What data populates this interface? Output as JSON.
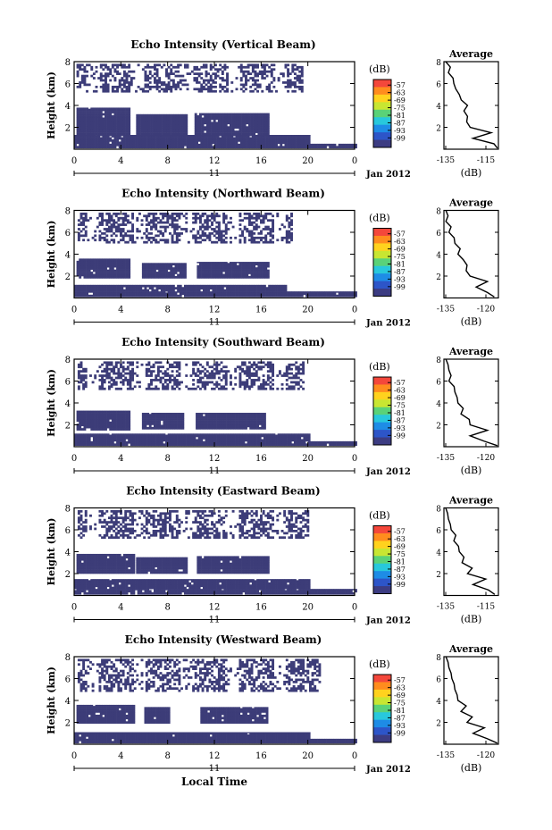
{
  "figure": {
    "date_label": "Jan 2012",
    "day_label": "11",
    "xlabel": "Local Time",
    "colorbar_units": "(dB)",
    "colorbar_ticks": [
      "-57",
      "-63",
      "-69",
      "-75",
      "-81",
      "-87",
      "-93",
      "-99"
    ],
    "colorbar_colors": [
      "#f4473b",
      "#ff8c1e",
      "#ffd21e",
      "#c8e632",
      "#5ad278",
      "#28c8dc",
      "#1e8ce6",
      "#2d55c8",
      "#3c3c82"
    ],
    "echo_color": "#3c3c78",
    "avg_title": "Average",
    "avg_xlabel": "(dB)"
  },
  "chart_data": [
    {
      "type": "heatmap",
      "title": "Echo Intensity (Vertical Beam)",
      "ylabel": "Height (km)",
      "xlim": [
        0,
        24
      ],
      "ylim": [
        0,
        8
      ],
      "xticks": [
        "0",
        "4",
        "8",
        "12",
        "16",
        "20",
        "0"
      ],
      "yticks": [
        "2",
        "4",
        "6",
        "8"
      ],
      "echo_bands": [
        {
          "x": [
            0,
            24
          ],
          "y": [
            0.1,
            0.5
          ]
        },
        {
          "x": [
            0,
            20
          ],
          "y": [
            0.5,
            1.3
          ]
        },
        {
          "x": [
            0.2,
            4.8
          ],
          "y": [
            1.3,
            3.8
          ]
        },
        {
          "x": [
            5.3,
            9.5
          ],
          "y": [
            1.3,
            3.2
          ]
        },
        {
          "x": [
            10.3,
            16.5
          ],
          "y": [
            1.3,
            3.3
          ]
        },
        {
          "x": [
            0.2,
            19.5
          ],
          "y": [
            5.2,
            7.8
          ]
        }
      ],
      "average_profile": {
        "xlim": [
          -135,
          -115
        ],
        "xticks": [
          "-135",
          "-115"
        ],
        "yticks": [
          "2",
          "4",
          "6",
          "8"
        ],
        "height_km": [
          0.1,
          0.5,
          1.0,
          1.5,
          2.0,
          2.5,
          3.0,
          3.5,
          4.0,
          4.5,
          5.0,
          5.5,
          6.0,
          6.5,
          7.0,
          7.5,
          8.0
        ],
        "db": [
          -115,
          -117,
          -124,
          -118,
          -125,
          -127,
          -126,
          -128,
          -126,
          -129,
          -129,
          -131,
          -131,
          -132,
          -133,
          -133,
          -134
        ]
      }
    },
    {
      "type": "heatmap",
      "title": "Echo Intensity (Northward Beam)",
      "ylabel": "Height (km)",
      "xlim": [
        0,
        24
      ],
      "ylim": [
        0,
        8
      ],
      "xticks": [
        "0",
        "4",
        "8",
        "12",
        "16",
        "20",
        "0"
      ],
      "yticks": [
        "2",
        "4",
        "6",
        "8"
      ],
      "echo_bands": [
        {
          "x": [
            0,
            24
          ],
          "y": [
            0.1,
            0.6
          ]
        },
        {
          "x": [
            0,
            18
          ],
          "y": [
            0.6,
            1.2
          ]
        },
        {
          "x": [
            0.2,
            4.8
          ],
          "y": [
            1.8,
            3.6
          ]
        },
        {
          "x": [
            5.8,
            9.5
          ],
          "y": [
            1.8,
            3.2
          ]
        },
        {
          "x": [
            10.5,
            16.5
          ],
          "y": [
            1.8,
            3.3
          ]
        },
        {
          "x": [
            0.3,
            18.5
          ],
          "y": [
            5.0,
            7.8
          ]
        }
      ],
      "average_profile": {
        "xlim": [
          -135,
          -117
        ],
        "xticks": [
          "-135",
          "-120"
        ],
        "yticks": [
          "2",
          "4",
          "6",
          "8"
        ],
        "height_km": [
          0.1,
          0.5,
          1.0,
          1.5,
          2.0,
          2.5,
          3.0,
          3.5,
          4.0,
          4.5,
          5.0,
          5.5,
          6.0,
          6.5,
          7.0,
          7.5,
          8.0
        ],
        "db": [
          -118,
          -121,
          -124,
          -121,
          -126,
          -128,
          -127,
          -129,
          -130,
          -130,
          -131,
          -132,
          -133,
          -133,
          -134,
          -134,
          -134
        ]
      }
    },
    {
      "type": "heatmap",
      "title": "Echo Intensity (Southward Beam)",
      "ylabel": "Height (km)",
      "xlim": [
        0,
        24
      ],
      "ylim": [
        0,
        8
      ],
      "xticks": [
        "0",
        "4",
        "8",
        "12",
        "16",
        "20",
        "0"
      ],
      "yticks": [
        "2",
        "4",
        "6",
        "8"
      ],
      "echo_bands": [
        {
          "x": [
            0,
            24
          ],
          "y": [
            0.1,
            0.5
          ]
        },
        {
          "x": [
            0,
            20
          ],
          "y": [
            0.5,
            1.2
          ]
        },
        {
          "x": [
            0.2,
            4.8
          ],
          "y": [
            1.5,
            3.3
          ]
        },
        {
          "x": [
            5.8,
            9.2
          ],
          "y": [
            1.6,
            3.1
          ]
        },
        {
          "x": [
            10.4,
            16.2
          ],
          "y": [
            1.6,
            3.1
          ]
        },
        {
          "x": [
            0.3,
            19.5
          ],
          "y": [
            5.2,
            7.8
          ]
        }
      ],
      "average_profile": {
        "xlim": [
          -135,
          -117
        ],
        "xticks": [
          "-135",
          "-120"
        ],
        "yticks": [
          "2",
          "4",
          "6",
          "8"
        ],
        "height_km": [
          0.1,
          0.5,
          1.0,
          1.5,
          2.0,
          2.5,
          3.0,
          3.5,
          4.0,
          4.5,
          5.0,
          5.5,
          6.0,
          6.5,
          7.0,
          7.5,
          8.0
        ],
        "db": [
          -117,
          -122,
          -126,
          -121,
          -126,
          -127,
          -129,
          -129,
          -130,
          -131,
          -131,
          -132,
          -133,
          -133,
          -133,
          -134,
          -134
        ]
      }
    },
    {
      "type": "heatmap",
      "title": "Echo Intensity (Eastward Beam)",
      "ylabel": "Height (km)",
      "xlim": [
        0,
        24
      ],
      "ylim": [
        0,
        8
      ],
      "xticks": [
        "0",
        "4",
        "8",
        "12",
        "16",
        "20",
        "0"
      ],
      "yticks": [
        "2",
        "4",
        "6",
        "8"
      ],
      "echo_bands": [
        {
          "x": [
            0,
            24
          ],
          "y": [
            0.1,
            0.6
          ]
        },
        {
          "x": [
            0,
            20
          ],
          "y": [
            0.6,
            1.5
          ]
        },
        {
          "x": [
            0.2,
            5.2
          ],
          "y": [
            2.0,
            3.8
          ]
        },
        {
          "x": [
            5.3,
            9.5
          ],
          "y": [
            2.0,
            3.5
          ]
        },
        {
          "x": [
            10.5,
            16.5
          ],
          "y": [
            2.0,
            3.6
          ]
        },
        {
          "x": [
            0.3,
            20.0
          ],
          "y": [
            5.2,
            7.8
          ]
        }
      ],
      "average_profile": {
        "xlim": [
          -135,
          -115
        ],
        "xticks": [
          "-135",
          "-115"
        ],
        "yticks": [
          "2",
          "4",
          "6",
          "8"
        ],
        "height_km": [
          0.1,
          0.5,
          1.0,
          1.5,
          2.0,
          2.5,
          3.0,
          3.5,
          4.0,
          4.5,
          5.0,
          5.5,
          6.0,
          6.5,
          7.0,
          7.5,
          8.0
        ],
        "db": [
          -116,
          -119,
          -124,
          -120,
          -126,
          -125,
          -128,
          -128,
          -129,
          -130,
          -131,
          -131,
          -132,
          -133,
          -133,
          -134,
          -134
        ]
      }
    },
    {
      "type": "heatmap",
      "title": "Echo Intensity (Westward Beam)",
      "ylabel": "Height (km)",
      "xlim": [
        0,
        24
      ],
      "ylim": [
        0,
        8
      ],
      "xticks": [
        "0",
        "4",
        "8",
        "12",
        "16",
        "20",
        "0"
      ],
      "yticks": [
        "2",
        "4",
        "6",
        "8"
      ],
      "echo_bands": [
        {
          "x": [
            0,
            24
          ],
          "y": [
            0.1,
            0.5
          ]
        },
        {
          "x": [
            0,
            20
          ],
          "y": [
            0.5,
            1.1
          ]
        },
        {
          "x": [
            0.2,
            5.2
          ],
          "y": [
            1.9,
            3.6
          ]
        },
        {
          "x": [
            6.0,
            8.2
          ],
          "y": [
            1.9,
            3.4
          ]
        },
        {
          "x": [
            10.8,
            16.5
          ],
          "y": [
            1.9,
            3.4
          ]
        },
        {
          "x": [
            0.3,
            21.0
          ],
          "y": [
            4.8,
            7.8
          ]
        }
      ],
      "average_profile": {
        "xlim": [
          -135,
          -117
        ],
        "xticks": [
          "-135",
          "-120"
        ],
        "yticks": [
          "2",
          "4",
          "6",
          "8"
        ],
        "height_km": [
          0.1,
          0.5,
          1.0,
          1.5,
          2.0,
          2.5,
          3.0,
          3.5,
          4.0,
          4.5,
          5.0,
          5.5,
          6.0,
          6.5,
          7.0,
          7.5,
          8.0
        ],
        "db": [
          -117,
          -121,
          -125,
          -122,
          -127,
          -126,
          -129,
          -128,
          -130,
          -131,
          -131,
          -132,
          -132,
          -133,
          -133,
          -134,
          -134
        ]
      }
    }
  ]
}
